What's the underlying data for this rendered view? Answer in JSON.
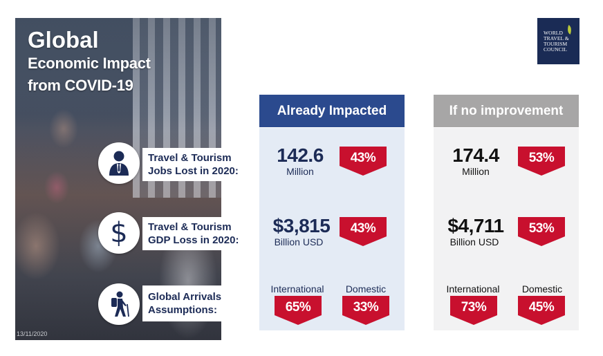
{
  "header": {
    "title": "Global",
    "subtitle_line1": "Economic Impact",
    "subtitle_line2": "from COVID-19"
  },
  "date": "13/11/2020",
  "logo": {
    "lines": [
      "WORLD",
      "TRAVEL &",
      "TOURISM",
      "COUNCIL"
    ]
  },
  "columns": {
    "impacted": {
      "label": "Already Impacted",
      "color": "#2b4a8e"
    },
    "no_improvement": {
      "label": "If no improvement",
      "color": "#a7a6a6"
    }
  },
  "rows": {
    "jobs": {
      "icon": "person-icon",
      "label_line1": "Travel & Tourism",
      "label_line2": "Jobs Lost in 2020:",
      "impacted": {
        "value": "142.6",
        "unit": "Million",
        "pct": "43%"
      },
      "no_improvement": {
        "value": "174.4",
        "unit": "Million",
        "pct": "53%"
      }
    },
    "gdp": {
      "icon": "dollar-icon",
      "label_line1": "Travel & Tourism",
      "label_line2": "GDP Loss in 2020:",
      "impacted": {
        "value": "$3,815",
        "unit": "Billion USD",
        "pct": "43%"
      },
      "no_improvement": {
        "value": "$4,711",
        "unit": "Billion USD",
        "pct": "53%"
      }
    },
    "arrivals": {
      "icon": "traveler-icon",
      "label_line1": "Global Arrivals",
      "label_line2": "Assumptions:",
      "impacted": {
        "international_label": "International",
        "international_pct": "65%",
        "domestic_label": "Domestic",
        "domestic_pct": "33%"
      },
      "no_improvement": {
        "international_label": "International",
        "international_pct": "73%",
        "domestic_label": "Domestic",
        "domestic_pct": "45%"
      }
    }
  },
  "colors": {
    "navy": "#1c2b56",
    "badge_red": "#c8102e"
  }
}
